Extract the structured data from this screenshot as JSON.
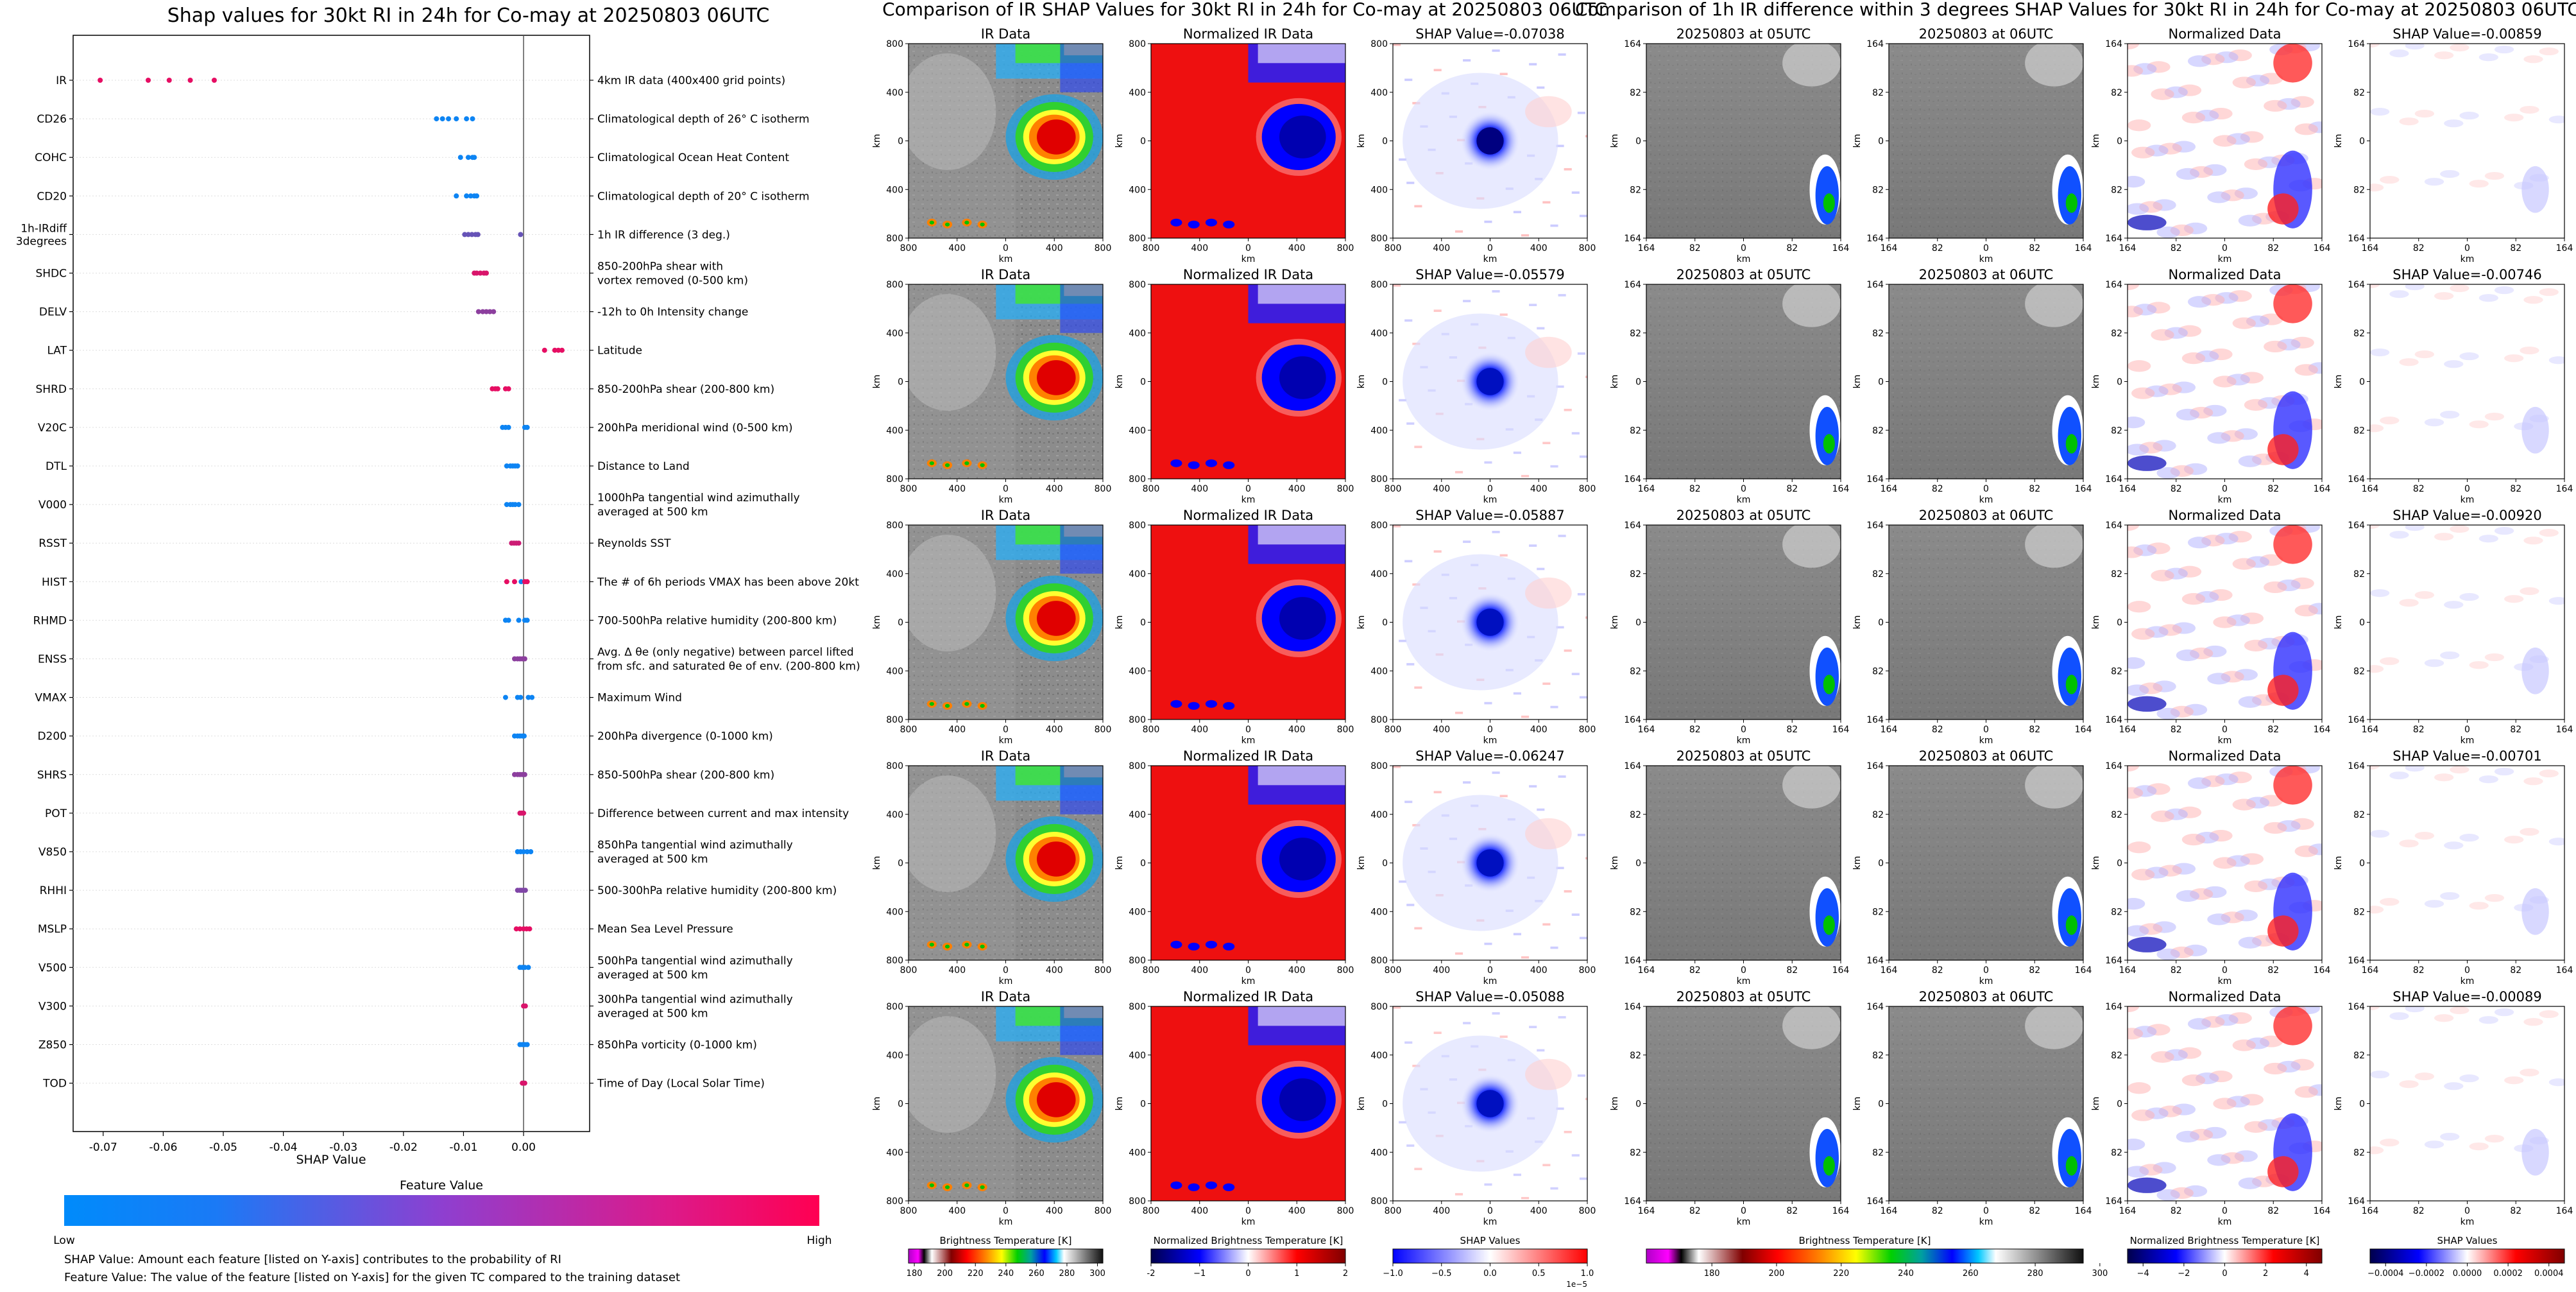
{
  "chart_data": [
    {
      "type": "scatter",
      "title": "Shap values for 30kt RI in 24h for Co-may at 20250803 06UTC",
      "xlabel": "SHAP Value",
      "ylabel": "",
      "xlim": [
        -0.075,
        0.011
      ],
      "xticks": [
        "-0.07",
        "-0.06",
        "-0.05",
        "-0.04",
        "-0.03",
        "-0.02",
        "-0.01",
        "0.00"
      ],
      "xtick_values": [
        -0.07,
        -0.06,
        -0.05,
        -0.04,
        -0.03,
        -0.02,
        -0.01,
        0.0
      ],
      "zero_line": 0.0,
      "features": [
        {
          "name": "IR",
          "desc": [
            "4km IR data (400x400 grid points)"
          ],
          "points": [
            [
              -0.0705,
              0.9
            ],
            [
              -0.0625,
              0.9
            ],
            [
              -0.059,
              0.9
            ],
            [
              -0.0555,
              0.9
            ],
            [
              -0.0515,
              0.9
            ]
          ]
        },
        {
          "name": "CD26",
          "desc": [
            "Climatological depth of 26° C isotherm"
          ],
          "points": [
            [
              -0.0145,
              0.05
            ],
            [
              -0.0135,
              0.05
            ],
            [
              -0.0125,
              0.05
            ],
            [
              -0.0112,
              0.05
            ],
            [
              -0.0095,
              0.05
            ],
            [
              -0.0085,
              0.05
            ]
          ]
        },
        {
          "name": "COHC",
          "desc": [
            "Climatological Ocean Heat Content"
          ],
          "points": [
            [
              -0.0105,
              0.05
            ],
            [
              -0.0092,
              0.05
            ],
            [
              -0.0085,
              0.05
            ],
            [
              -0.0082,
              0.05
            ]
          ]
        },
        {
          "name": "CD20",
          "desc": [
            "Climatological depth of 20° C isotherm"
          ],
          "points": [
            [
              -0.0112,
              0.05
            ],
            [
              -0.0095,
              0.05
            ],
            [
              -0.0088,
              0.05
            ],
            [
              -0.0082,
              0.05
            ],
            [
              -0.0078,
              0.05
            ]
          ]
        },
        {
          "name": "1h-IRdiff\n3degrees",
          "desc": [
            "1h IR difference (3 deg.)"
          ],
          "points": [
            [
              -0.0098,
              0.4
            ],
            [
              -0.0092,
              0.4
            ],
            [
              -0.0086,
              0.4
            ],
            [
              -0.008,
              0.4
            ],
            [
              -0.0076,
              0.4
            ],
            [
              -0.0005,
              0.4
            ]
          ]
        },
        {
          "name": "SHDC",
          "desc": [
            "850-200hPa shear with",
            "vortex removed (0-500 km)"
          ],
          "points": [
            [
              -0.0082,
              0.85
            ],
            [
              -0.0078,
              0.85
            ],
            [
              -0.0072,
              0.85
            ],
            [
              -0.0066,
              0.85
            ],
            [
              -0.0062,
              0.85
            ]
          ]
        },
        {
          "name": "DELV",
          "desc": [
            "-12h to 0h Intensity change"
          ],
          "points": [
            [
              -0.0075,
              0.55
            ],
            [
              -0.0068,
              0.55
            ],
            [
              -0.0062,
              0.55
            ],
            [
              -0.0056,
              0.55
            ],
            [
              -0.005,
              0.55
            ]
          ]
        },
        {
          "name": "LAT",
          "desc": [
            "Latitude"
          ],
          "points": [
            [
              0.0035,
              0.9
            ],
            [
              0.0052,
              0.9
            ],
            [
              0.0058,
              0.9
            ],
            [
              0.0064,
              0.9
            ]
          ]
        },
        {
          "name": "SHRD",
          "desc": [
            "850-200hPa shear (200-800 km)"
          ],
          "points": [
            [
              -0.0052,
              0.9
            ],
            [
              -0.0047,
              0.9
            ],
            [
              -0.0043,
              0.9
            ],
            [
              -0.003,
              0.9
            ],
            [
              -0.0025,
              0.9
            ]
          ]
        },
        {
          "name": "V20C",
          "desc": [
            "200hPa meridional wind (0-500 km)"
          ],
          "points": [
            [
              -0.0035,
              0.05
            ],
            [
              -0.003,
              0.05
            ],
            [
              -0.0025,
              0.05
            ],
            [
              0.0002,
              0.05
            ],
            [
              0.0006,
              0.05
            ]
          ]
        },
        {
          "name": "DTL",
          "desc": [
            "Distance to Land"
          ],
          "points": [
            [
              -0.0028,
              0.05
            ],
            [
              -0.0022,
              0.05
            ],
            [
              -0.0018,
              0.05
            ],
            [
              -0.0014,
              0.05
            ],
            [
              -0.001,
              0.05
            ]
          ]
        },
        {
          "name": "V000",
          "desc": [
            "1000hPa tangential wind azimuthally",
            "averaged at 500 km"
          ],
          "points": [
            [
              -0.0028,
              0.05
            ],
            [
              -0.0022,
              0.05
            ],
            [
              -0.0018,
              0.05
            ],
            [
              -0.0014,
              0.05
            ],
            [
              -0.0008,
              0.05
            ]
          ]
        },
        {
          "name": "RSST",
          "desc": [
            "Reynolds SST"
          ],
          "points": [
            [
              -0.002,
              0.8
            ],
            [
              -0.0016,
              0.8
            ],
            [
              -0.0012,
              0.8
            ],
            [
              -0.0008,
              0.8
            ]
          ]
        },
        {
          "name": "HIST",
          "desc": [
            "The # of 6h periods VMAX has been above 20kt"
          ],
          "points": [
            [
              -0.0028,
              0.9
            ],
            [
              -0.0015,
              0.9
            ],
            [
              -0.0004,
              0.05
            ],
            [
              0.0002,
              0.9
            ],
            [
              0.0006,
              0.9
            ]
          ]
        },
        {
          "name": "RHMD",
          "desc": [
            "700-500hPa relative humidity (200-800 km)"
          ],
          "points": [
            [
              -0.003,
              0.05
            ],
            [
              -0.0025,
              0.05
            ],
            [
              -0.0008,
              0.05
            ],
            [
              0.0002,
              0.05
            ],
            [
              0.0006,
              0.05
            ]
          ]
        },
        {
          "name": "ENSS",
          "desc": [
            "Avg. Δ θe (only negative) between parcel lifted",
            "from sfc. and saturated θe of env. (200-800 km)"
          ],
          "points": [
            [
              -0.0015,
              0.55
            ],
            [
              -0.001,
              0.55
            ],
            [
              -0.0006,
              0.55
            ],
            [
              -0.0002,
              0.55
            ],
            [
              0.0002,
              0.55
            ]
          ]
        },
        {
          "name": "VMAX",
          "desc": [
            "Maximum Wind"
          ],
          "points": [
            [
              -0.003,
              0.05
            ],
            [
              -0.001,
              0.05
            ],
            [
              -0.0005,
              0.05
            ],
            [
              0.0008,
              0.05
            ],
            [
              0.0014,
              0.05
            ]
          ]
        },
        {
          "name": "D200",
          "desc": [
            "200hPa divergence (0-1000 km)"
          ],
          "points": [
            [
              -0.0015,
              0.05
            ],
            [
              -0.001,
              0.05
            ],
            [
              -0.0006,
              0.05
            ],
            [
              -0.0002,
              0.05
            ],
            [
              0.0001,
              0.05
            ]
          ]
        },
        {
          "name": "SHRS",
          "desc": [
            "850-500hPa shear (200-800 km)"
          ],
          "points": [
            [
              -0.0015,
              0.55
            ],
            [
              -0.001,
              0.55
            ],
            [
              -0.0006,
              0.55
            ],
            [
              -0.0002,
              0.55
            ],
            [
              0.0002,
              0.55
            ]
          ]
        },
        {
          "name": "POT",
          "desc": [
            "Difference between current and max intensity"
          ],
          "points": [
            [
              -0.0006,
              0.85
            ],
            [
              -0.0003,
              0.85
            ],
            [
              0.0,
              0.85
            ]
          ]
        },
        {
          "name": "V850",
          "desc": [
            "850hPa tangential wind azimuthally",
            "averaged at 500 km"
          ],
          "points": [
            [
              -0.001,
              0.05
            ],
            [
              -0.0005,
              0.05
            ],
            [
              0.0,
              0.05
            ],
            [
              0.0006,
              0.05
            ],
            [
              0.0012,
              0.05
            ]
          ]
        },
        {
          "name": "RHHI",
          "desc": [
            "500-300hPa relative humidity (200-800 km)"
          ],
          "points": [
            [
              -0.001,
              0.5
            ],
            [
              -0.0006,
              0.5
            ],
            [
              -0.0003,
              0.5
            ],
            [
              0.0,
              0.5
            ],
            [
              0.0003,
              0.5
            ]
          ]
        },
        {
          "name": "MSLP",
          "desc": [
            "Mean Sea Level Pressure"
          ],
          "points": [
            [
              -0.0012,
              0.9
            ],
            [
              -0.0006,
              0.9
            ],
            [
              0.0,
              0.9
            ],
            [
              0.0005,
              0.9
            ],
            [
              0.001,
              0.9
            ]
          ]
        },
        {
          "name": "V500",
          "desc": [
            "500hPa tangential wind azimuthally",
            "averaged at 500 km"
          ],
          "points": [
            [
              -0.0006,
              0.05
            ],
            [
              -0.0002,
              0.05
            ],
            [
              0.0002,
              0.05
            ],
            [
              0.0008,
              0.05
            ]
          ]
        },
        {
          "name": "V300",
          "desc": [
            "300hPa tangential wind azimuthally",
            "averaged at 500 km"
          ],
          "points": [
            [
              0.0,
              0.85
            ],
            [
              0.0003,
              0.85
            ]
          ]
        },
        {
          "name": "Z850",
          "desc": [
            "850hPa vorticity (0-1000 km)"
          ],
          "points": [
            [
              -0.0006,
              0.05
            ],
            [
              -0.0002,
              0.05
            ],
            [
              0.0002,
              0.05
            ],
            [
              0.0006,
              0.05
            ]
          ]
        },
        {
          "name": "TOD",
          "desc": [
            "Time of Day (Local Solar Time)"
          ],
          "points": [
            [
              -0.0002,
              0.85
            ],
            [
              0.0002,
              0.85
            ]
          ]
        }
      ],
      "colorbar": {
        "title": "Feature Value",
        "low": "Low",
        "high": "High",
        "colors": [
          "#008bfb",
          "#ff0052"
        ]
      },
      "notes": [
        "SHAP Value: Amount each feature [listed on Y-axis] contributes to the probability of RI",
        "Feature Value: The value of the feature [listed on Y-axis] for the given TC compared to the training dataset"
      ]
    },
    {
      "type": "heatmap",
      "title": "Comparison of IR SHAP Values for 30kt RI in 24h for Co-may at 20250803 06UTC",
      "columns": [
        "IR Data",
        "Normalized IR Data"
      ],
      "shap_titles": [
        "SHAP Value=-0.07038",
        "SHAP Value=-0.05579",
        "SHAP Value=-0.05887",
        "SHAP Value=-0.06247",
        "SHAP Value=-0.05088"
      ],
      "xlabel": "km",
      "ylabel": "km",
      "xticks": [
        "800",
        "400",
        "0",
        "400",
        "800"
      ],
      "yticks": [
        "800",
        "400",
        "0",
        "400",
        "800"
      ],
      "colorbars": [
        {
          "label": "Brightness Temperature [K]",
          "ticks": [
            "180",
            "200",
            "220",
            "240",
            "260",
            "280",
            "300"
          ]
        },
        {
          "label": "Normalized Brightness Temperature [K]",
          "ticks": [
            "-2",
            "−1",
            "0",
            "1",
            "2"
          ]
        },
        {
          "label": "SHAP Values",
          "ticks": [
            "−1.0",
            "−0.5",
            "0.0",
            "0.5",
            "1.0"
          ],
          "offset": "1e−5"
        }
      ]
    },
    {
      "type": "heatmap",
      "title": "Comparison of 1h IR difference within 3 degrees SHAP Values for 30kt RI in 24h for Co-may at 20250803 06UTC",
      "columns": [
        "20250803 at 05UTC",
        "20250803 at 06UTC",
        "Normalized Data"
      ],
      "shap_titles": [
        "SHAP Value=-0.00859",
        "SHAP Value=-0.00746",
        "SHAP Value=-0.00920",
        "SHAP Value=-0.00701",
        "SHAP Value=-0.00089"
      ],
      "xlabel": "km",
      "ylabel": "km",
      "xticks": [
        "164",
        "82",
        "0",
        "82",
        "164"
      ],
      "yticks": [
        "164",
        "82",
        "0",
        "82",
        "164"
      ],
      "colorbars": [
        {
          "label": "Brightness Temperature [K]",
          "ticks": [
            "180",
            "200",
            "220",
            "240",
            "260",
            "280",
            "300"
          ]
        },
        {
          "label": "Normalized Brightness Temperature [K]",
          "ticks": [
            "−4",
            "−2",
            "0",
            "2",
            "4"
          ]
        },
        {
          "label": "SHAP Values",
          "ticks": [
            "−0.0004",
            "−0.0002",
            "0.0000",
            "0.0002",
            "0.0004"
          ]
        }
      ]
    }
  ]
}
